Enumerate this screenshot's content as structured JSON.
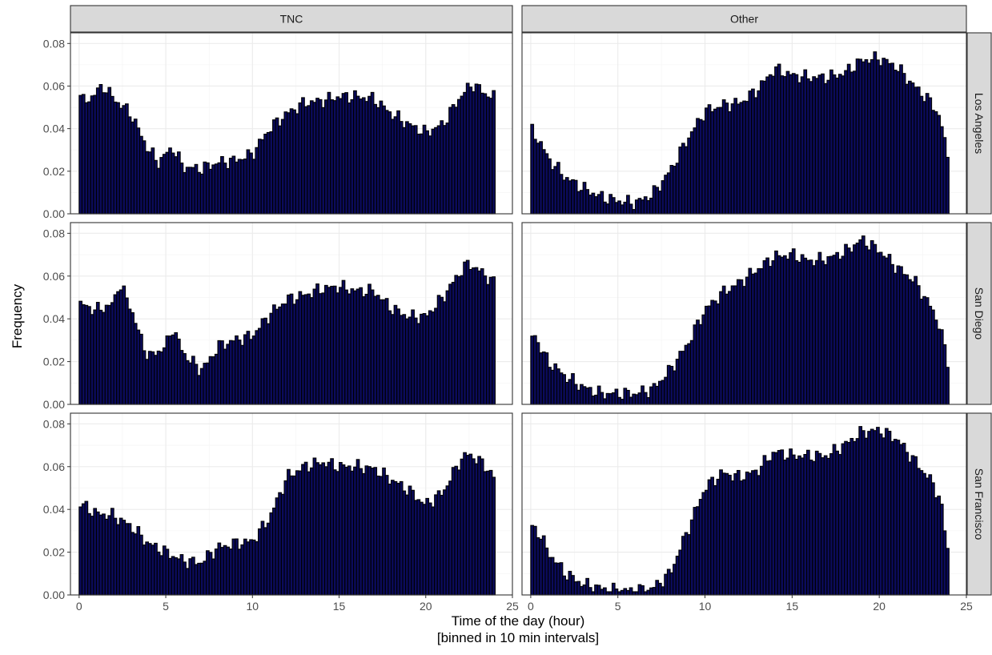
{
  "chart_data": {
    "type": "bar",
    "layout": "facet-grid",
    "columns": [
      "TNC",
      "Other"
    ],
    "rows": [
      "Los Angeles",
      "San Diego",
      "San Francisco"
    ],
    "xlabel": "Time of the day (hour)",
    "xlabel2": "[binned in 10 min intervals]",
    "ylabel": "Frequency",
    "xlim": [
      -0.5,
      25
    ],
    "ylim": [
      0,
      0.085
    ],
    "xticks": [
      0,
      5,
      10,
      15,
      20,
      25
    ],
    "yticks": [
      0.0,
      0.02,
      0.04,
      0.06,
      0.08
    ],
    "ytick_labels": [
      "0.00",
      "0.02",
      "0.04",
      "0.06",
      "0.08"
    ],
    "bin_width_hours": 0.1667,
    "bin_start_hours": 0.0833,
    "bar_fill": "#0b0b5c",
    "bar_outline": "#000000",
    "grid": true,
    "panels": [
      {
        "row": "Los Angeles",
        "col": "TNC",
        "profile": [
          [
            0,
            0.057
          ],
          [
            0.3,
            0.052
          ],
          [
            1,
            0.057
          ],
          [
            1.4,
            0.06
          ],
          [
            2,
            0.054
          ],
          [
            3,
            0.047
          ],
          [
            3.5,
            0.038
          ],
          [
            4,
            0.03
          ],
          [
            4.6,
            0.024
          ],
          [
            5,
            0.028
          ],
          [
            5.4,
            0.031
          ],
          [
            6,
            0.022
          ],
          [
            7,
            0.021
          ],
          [
            8,
            0.024
          ],
          [
            9,
            0.025
          ],
          [
            10,
            0.028
          ],
          [
            11,
            0.04
          ],
          [
            12,
            0.047
          ],
          [
            13,
            0.052
          ],
          [
            14,
            0.053
          ],
          [
            15,
            0.055
          ],
          [
            16,
            0.055
          ],
          [
            17,
            0.054
          ],
          [
            18,
            0.047
          ],
          [
            19,
            0.042
          ],
          [
            20,
            0.038
          ],
          [
            21,
            0.042
          ],
          [
            22,
            0.055
          ],
          [
            22.7,
            0.061
          ],
          [
            23.5,
            0.056
          ],
          [
            23.9,
            0.055
          ]
        ]
      },
      {
        "row": "Los Angeles",
        "col": "Other",
        "profile": [
          [
            0,
            0.04
          ],
          [
            0.5,
            0.034
          ],
          [
            1,
            0.026
          ],
          [
            2,
            0.017
          ],
          [
            3,
            0.012
          ],
          [
            4,
            0.008
          ],
          [
            5,
            0.006
          ],
          [
            6,
            0.005
          ],
          [
            7,
            0.009
          ],
          [
            8,
            0.02
          ],
          [
            9,
            0.035
          ],
          [
            10,
            0.048
          ],
          [
            11,
            0.051
          ],
          [
            12,
            0.052
          ],
          [
            13,
            0.058
          ],
          [
            14,
            0.068
          ],
          [
            15,
            0.065
          ],
          [
            16,
            0.064
          ],
          [
            17,
            0.064
          ],
          [
            18,
            0.066
          ],
          [
            19,
            0.072
          ],
          [
            20,
            0.073
          ],
          [
            21,
            0.069
          ],
          [
            22,
            0.06
          ],
          [
            23,
            0.052
          ],
          [
            23.5,
            0.045
          ],
          [
            23.9,
            0.027
          ]
        ]
      },
      {
        "row": "San Diego",
        "col": "TNC",
        "profile": [
          [
            0,
            0.047
          ],
          [
            1,
            0.044
          ],
          [
            2,
            0.047
          ],
          [
            2.3,
            0.057
          ],
          [
            3,
            0.045
          ],
          [
            3.5,
            0.032
          ],
          [
            4,
            0.022
          ],
          [
            5,
            0.027
          ],
          [
            5.4,
            0.036
          ],
          [
            6,
            0.024
          ],
          [
            7,
            0.016
          ],
          [
            7.5,
            0.02
          ],
          [
            8,
            0.027
          ],
          [
            9,
            0.03
          ],
          [
            10,
            0.032
          ],
          [
            11,
            0.042
          ],
          [
            12,
            0.049
          ],
          [
            13,
            0.051
          ],
          [
            14,
            0.054
          ],
          [
            15,
            0.055
          ],
          [
            16,
            0.053
          ],
          [
            17,
            0.053
          ],
          [
            18,
            0.045
          ],
          [
            19,
            0.041
          ],
          [
            20,
            0.041
          ],
          [
            21,
            0.05
          ],
          [
            22,
            0.062
          ],
          [
            22.5,
            0.066
          ],
          [
            23.5,
            0.06
          ],
          [
            23.9,
            0.057
          ]
        ]
      },
      {
        "row": "San Diego",
        "col": "Other",
        "profile": [
          [
            0,
            0.03
          ],
          [
            0.2,
            0.034
          ],
          [
            0.5,
            0.027
          ],
          [
            1,
            0.02
          ],
          [
            2,
            0.013
          ],
          [
            3,
            0.008
          ],
          [
            4,
            0.005
          ],
          [
            5,
            0.005
          ],
          [
            6,
            0.005
          ],
          [
            7,
            0.007
          ],
          [
            8,
            0.016
          ],
          [
            9,
            0.028
          ],
          [
            10,
            0.044
          ],
          [
            11,
            0.052
          ],
          [
            12,
            0.057
          ],
          [
            13,
            0.063
          ],
          [
            14,
            0.069
          ],
          [
            15,
            0.07
          ],
          [
            16,
            0.067
          ],
          [
            17,
            0.068
          ],
          [
            18,
            0.071
          ],
          [
            19,
            0.077
          ],
          [
            20,
            0.072
          ],
          [
            21,
            0.064
          ],
          [
            22,
            0.058
          ],
          [
            23,
            0.045
          ],
          [
            23.5,
            0.036
          ],
          [
            23.9,
            0.02
          ]
        ]
      },
      {
        "row": "San Francisco",
        "col": "TNC",
        "profile": [
          [
            0,
            0.043
          ],
          [
            1,
            0.038
          ],
          [
            2,
            0.037
          ],
          [
            3,
            0.032
          ],
          [
            4,
            0.024
          ],
          [
            5,
            0.02
          ],
          [
            6,
            0.016
          ],
          [
            7,
            0.015
          ],
          [
            8,
            0.022
          ],
          [
            9,
            0.024
          ],
          [
            10,
            0.025
          ],
          [
            11,
            0.036
          ],
          [
            12,
            0.055
          ],
          [
            13,
            0.06
          ],
          [
            14,
            0.062
          ],
          [
            15,
            0.06
          ],
          [
            16,
            0.06
          ],
          [
            17,
            0.059
          ],
          [
            18,
            0.054
          ],
          [
            19,
            0.049
          ],
          [
            20,
            0.042
          ],
          [
            21,
            0.048
          ],
          [
            22,
            0.063
          ],
          [
            22.5,
            0.066
          ],
          [
            23.5,
            0.06
          ],
          [
            23.9,
            0.055
          ]
        ]
      },
      {
        "row": "San Francisco",
        "col": "Other",
        "profile": [
          [
            0,
            0.032
          ],
          [
            0.5,
            0.029
          ],
          [
            1,
            0.02
          ],
          [
            2,
            0.01
          ],
          [
            3,
            0.005
          ],
          [
            4,
            0.003
          ],
          [
            5,
            0.002
          ],
          [
            6,
            0.002
          ],
          [
            7,
            0.003
          ],
          [
            8,
            0.01
          ],
          [
            9,
            0.03
          ],
          [
            10,
            0.05
          ],
          [
            11,
            0.057
          ],
          [
            12,
            0.055
          ],
          [
            13,
            0.058
          ],
          [
            14,
            0.067
          ],
          [
            15,
            0.065
          ],
          [
            16,
            0.065
          ],
          [
            17,
            0.065
          ],
          [
            18,
            0.07
          ],
          [
            19,
            0.076
          ],
          [
            20,
            0.077
          ],
          [
            21,
            0.073
          ],
          [
            22,
            0.063
          ],
          [
            23,
            0.053
          ],
          [
            23.5,
            0.045
          ],
          [
            23.9,
            0.022
          ]
        ]
      }
    ]
  }
}
